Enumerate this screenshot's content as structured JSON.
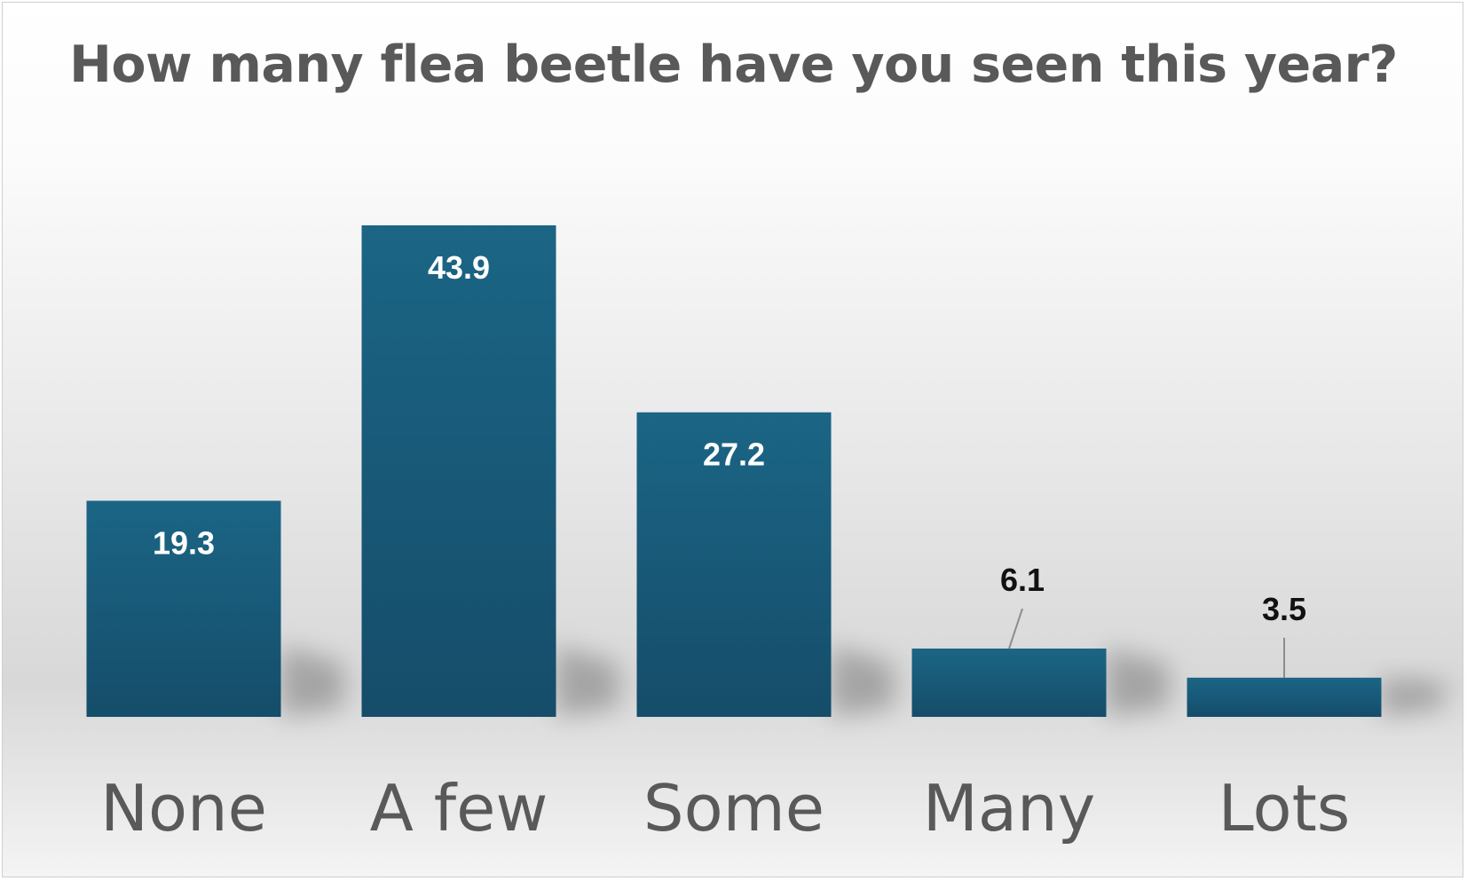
{
  "chart_data": {
    "type": "bar",
    "title": "How many flea beetle have you seen this year?",
    "categories": [
      "None",
      "A few",
      "Some",
      "Many",
      "Lots"
    ],
    "values": [
      19.3,
      43.9,
      27.2,
      6.1,
      3.5
    ],
    "value_labels": [
      "19.3",
      "43.9",
      "27.2",
      "6.1",
      "3.5"
    ],
    "xlabel": "",
    "ylabel": "",
    "ylim": [
      0,
      43.9
    ],
    "grid": false,
    "legend": "none",
    "colors": {
      "bar_top": "#1b6585",
      "bar_bottom": "#154d6a",
      "inside_label": "#ffffff",
      "outside_label": "#111111",
      "leader_line": "#8c8c8c",
      "category_label": "#595959",
      "title": "#595959"
    }
  }
}
